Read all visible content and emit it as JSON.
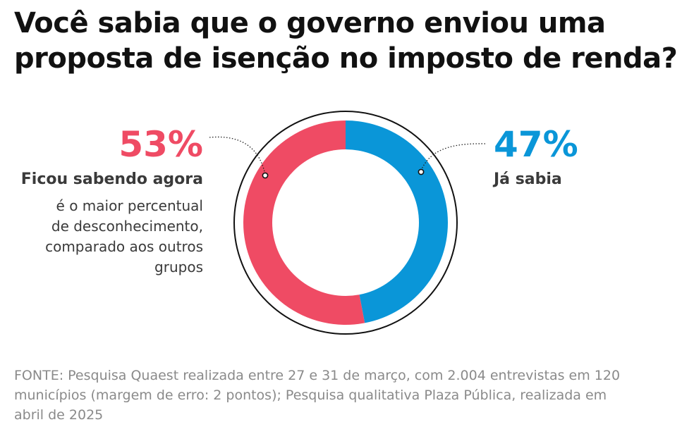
{
  "title_lines": [
    "Você sabia que o governo enviou uma",
    "proposta de isenção no imposto de renda?"
  ],
  "chart_data": {
    "type": "pie",
    "donut": true,
    "title": "Você sabia que o governo enviou uma proposta de isenção no imposto de renda?",
    "categories": [
      "Já sabia",
      "Ficou sabendo agora"
    ],
    "values": [
      47,
      53
    ],
    "unit": "%",
    "colors": [
      "#0a96d8",
      "#ef4b64"
    ],
    "data_labels": [
      "47%",
      "53%"
    ],
    "legend": "none"
  },
  "left": {
    "percent": "53%",
    "label": "Ficou sabendo agora",
    "description_lines": [
      "é o maior percentual",
      "de desconhecimento,",
      "comparado aos outros",
      "grupos"
    ],
    "color": "#ef4b64"
  },
  "right": {
    "percent": "47%",
    "label": "Já sabia",
    "color": "#0a96d8"
  },
  "source_lines": [
    "FONTE: Pesquisa Quaest realizada entre 27 e 31 de março, com 2.004 entrevistas em 120",
    "municípios (margem de erro: 2 pontos); Pesquisa qualitativa Plaza Pública, realizada em",
    "abril de 2025"
  ]
}
